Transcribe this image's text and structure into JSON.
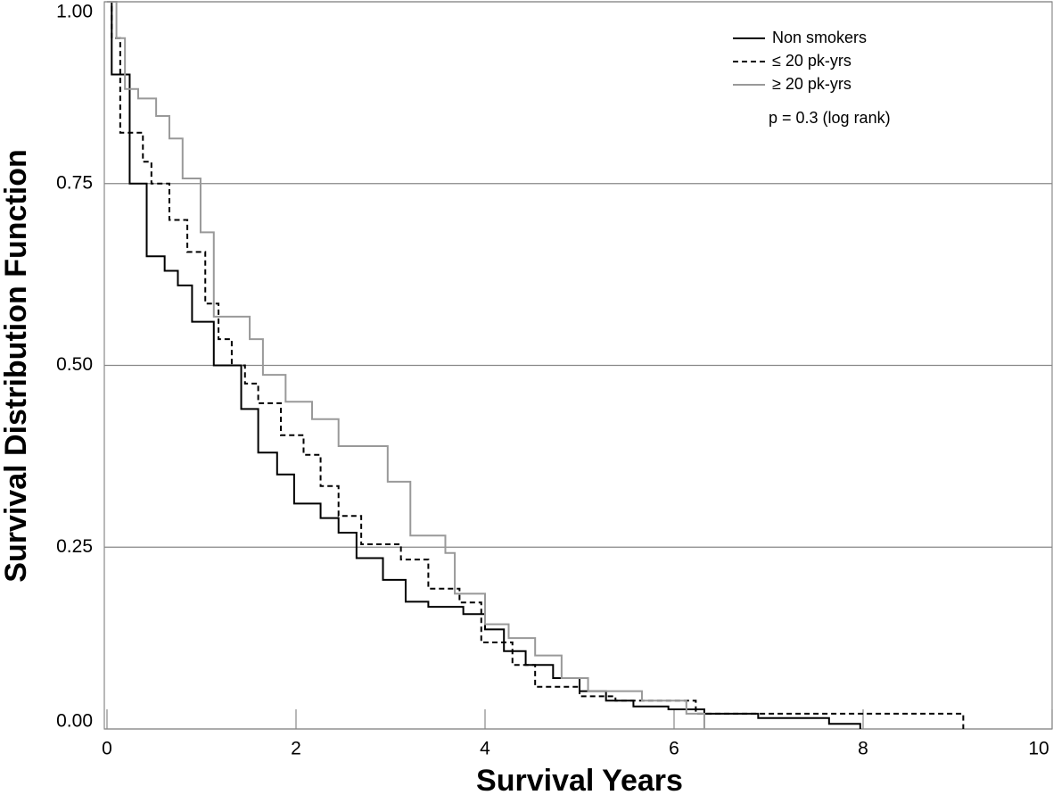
{
  "chart_data": {
    "type": "step",
    "xlabel": "Survival Years",
    "ylabel": "Survival Distribution Function",
    "xlim": [
      0,
      10
    ],
    "ylim": [
      0,
      1
    ],
    "xticks": [
      0,
      2,
      4,
      6,
      8,
      10
    ],
    "yticks": [
      {
        "value": 0,
        "label": "0.00"
      },
      0.25,
      {
        "value": 0.5,
        "label": "0.50"
      },
      0.75,
      {
        "value": 1,
        "label": "1.00"
      }
    ],
    "grid": true,
    "legend": "upper right",
    "annotation": "p = 0.3 (log rank)",
    "series": [
      {
        "name": "Non smokers",
        "color": "#000000",
        "style": "solid",
        "x": [
          0,
          0.05,
          0.24,
          0.42,
          0.61,
          0.75,
          0.9,
          1.13,
          1.42,
          1.6,
          1.8,
          1.98,
          2.26,
          2.45,
          2.64,
          2.92,
          3.16,
          3.4,
          3.77,
          4.0,
          4.2,
          4.43,
          4.72,
          5.0,
          5.28,
          5.57,
          5.94,
          6.32,
          6.89,
          7.64,
          7.97
        ],
        "values": [
          1,
          0.9,
          0.75,
          0.65,
          0.63,
          0.61,
          0.56,
          0.5,
          0.44,
          0.38,
          0.35,
          0.31,
          0.29,
          0.27,
          0.235,
          0.205,
          0.175,
          0.168,
          0.158,
          0.137,
          0.107,
          0.088,
          0.07,
          0.052,
          0.039,
          0.031,
          0.027,
          0.021,
          0.015,
          0.007,
          0
        ]
      },
      {
        "name": "≤ 20 pk-yrs",
        "color": "#000000",
        "style": "dashed",
        "x": [
          0,
          0.05,
          0.14,
          0.38,
          0.47,
          0.66,
          0.85,
          1.04,
          1.18,
          1.32,
          1.46,
          1.6,
          1.84,
          2.08,
          2.26,
          2.45,
          2.69,
          3.11,
          3.4,
          3.73,
          3.96,
          4.29,
          4.53,
          5.0,
          5.38,
          6.23,
          9.06
        ],
        "values": [
          1,
          0.95,
          0.82,
          0.78,
          0.75,
          0.7,
          0.656,
          0.585,
          0.536,
          0.5,
          0.475,
          0.448,
          0.404,
          0.377,
          0.334,
          0.293,
          0.254,
          0.233,
          0.193,
          0.174,
          0.119,
          0.088,
          0.058,
          0.045,
          0.039,
          0.021,
          0
        ]
      },
      {
        "name": "≥ 20 pk-yrs",
        "color": "#999999",
        "style": "solid",
        "x": [
          0,
          0.1,
          0.19,
          0.33,
          0.52,
          0.66,
          0.8,
          0.99,
          1.13,
          1.51,
          1.65,
          1.89,
          2.17,
          2.45,
          2.97,
          3.21,
          3.58,
          3.68,
          4.0,
          4.25,
          4.53,
          4.81,
          5.09,
          5.66,
          6.13,
          6.32
        ],
        "values": [
          1,
          0.95,
          0.88,
          0.867,
          0.843,
          0.812,
          0.757,
          0.683,
          0.567,
          0.536,
          0.487,
          0.45,
          0.426,
          0.389,
          0.34,
          0.266,
          0.242,
          0.186,
          0.144,
          0.125,
          0.101,
          0.07,
          0.052,
          0.039,
          0.021,
          0
        ]
      }
    ]
  }
}
